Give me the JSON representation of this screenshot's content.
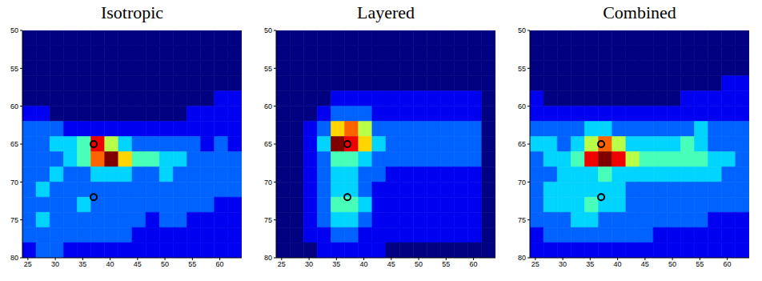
{
  "chart_data": [
    {
      "type": "heatmap",
      "title": "Isotropic",
      "x_edges": [
        24,
        26.5,
        29,
        31.5,
        34,
        36.5,
        39,
        41.5,
        44,
        46.5,
        49,
        51.5,
        54,
        56.5,
        59,
        61.5,
        64
      ],
      "y_edges": [
        50,
        52,
        54,
        56,
        58,
        60,
        62,
        64,
        66,
        68,
        70,
        72,
        74,
        76,
        78,
        80
      ],
      "z": [
        [
          0,
          0,
          0,
          0,
          0,
          0,
          0,
          0,
          0,
          0,
          0,
          0,
          0,
          0,
          0,
          0
        ],
        [
          0,
          0,
          0,
          0,
          0,
          0,
          0,
          0,
          0,
          0,
          0,
          0,
          0,
          0,
          0,
          0
        ],
        [
          0,
          0,
          0,
          0,
          0,
          0,
          0,
          0,
          0,
          0,
          0,
          0,
          0,
          0,
          0,
          0
        ],
        [
          0,
          0,
          0,
          0,
          0,
          0,
          0,
          0,
          0,
          0,
          0,
          0,
          0,
          0,
          0,
          0
        ],
        [
          0,
          0,
          0,
          0,
          0,
          0,
          0,
          0,
          0,
          0,
          0,
          0,
          0,
          0,
          1,
          1
        ],
        [
          1,
          1,
          0,
          0,
          0,
          0,
          0,
          0,
          0,
          0,
          0,
          0,
          1,
          1,
          1,
          1
        ],
        [
          2,
          2,
          2,
          1,
          1,
          1,
          1,
          1,
          1,
          1,
          1,
          1,
          1,
          1,
          1,
          1
        ],
        [
          2,
          2,
          3,
          3,
          4,
          8,
          5,
          3,
          2,
          2,
          2,
          2,
          2,
          1,
          2,
          1
        ],
        [
          2,
          2,
          2,
          3,
          4,
          7,
          9,
          6,
          4,
          4,
          3,
          3,
          2,
          2,
          2,
          2
        ],
        [
          2,
          2,
          3,
          2,
          2,
          3,
          3,
          3,
          2,
          2,
          3,
          2,
          2,
          2,
          2,
          2
        ],
        [
          2,
          3,
          2,
          2,
          2,
          2,
          2,
          2,
          2,
          2,
          2,
          2,
          2,
          2,
          2,
          2
        ],
        [
          2,
          2,
          2,
          2,
          3,
          2,
          2,
          2,
          2,
          2,
          2,
          2,
          2,
          2,
          1,
          1
        ],
        [
          2,
          3,
          2,
          2,
          2,
          2,
          2,
          2,
          2,
          1,
          2,
          2,
          1,
          1,
          1,
          1
        ],
        [
          2,
          2,
          2,
          2,
          2,
          2,
          2,
          2,
          1,
          1,
          1,
          1,
          1,
          1,
          1,
          1
        ],
        [
          1,
          2,
          2,
          1,
          1,
          1,
          1,
          1,
          1,
          1,
          1,
          1,
          1,
          1,
          1,
          1
        ]
      ],
      "zlim": [
        0,
        9
      ],
      "xlim": [
        24,
        64
      ],
      "xticks": [
        25,
        30,
        35,
        40,
        45,
        50,
        55,
        60
      ],
      "ylim": [
        50,
        80
      ],
      "yticks": [
        50,
        55,
        60,
        65,
        70,
        75,
        80
      ],
      "points": {
        "x": [
          37,
          37
        ],
        "y": [
          65,
          72
        ],
        "marker": "circle",
        "color": "#000000"
      }
    },
    {
      "type": "heatmap",
      "title": "Layered",
      "x_edges": [
        24,
        26.5,
        29,
        31.5,
        34,
        36.5,
        39,
        41.5,
        44,
        46.5,
        49,
        51.5,
        54,
        56.5,
        59,
        61.5,
        64
      ],
      "y_edges": [
        50,
        52,
        54,
        56,
        58,
        60,
        62,
        64,
        66,
        68,
        70,
        72,
        74,
        76,
        78,
        80
      ],
      "z": [
        [
          0,
          0,
          0,
          0,
          0,
          0,
          0,
          0,
          0,
          0,
          0,
          0,
          0,
          0,
          0,
          0
        ],
        [
          0,
          0,
          0,
          0,
          0,
          0,
          0,
          0,
          0,
          0,
          0,
          0,
          0,
          0,
          0,
          0
        ],
        [
          0,
          0,
          0,
          0,
          0,
          0,
          0,
          0,
          0,
          0,
          0,
          0,
          0,
          0,
          0,
          0
        ],
        [
          0,
          0,
          0,
          0,
          0,
          0,
          0,
          0,
          0,
          0,
          0,
          0,
          0,
          0,
          0,
          0
        ],
        [
          0,
          0,
          0,
          0,
          1,
          1,
          1,
          1,
          1,
          1,
          1,
          1,
          1,
          1,
          1,
          0
        ],
        [
          0,
          0,
          0,
          1,
          2,
          2,
          2,
          1,
          1,
          1,
          1,
          1,
          1,
          1,
          1,
          0
        ],
        [
          0,
          0,
          1,
          2,
          6,
          7,
          5,
          2,
          2,
          2,
          2,
          2,
          2,
          2,
          2,
          0
        ],
        [
          0,
          0,
          1,
          3,
          9,
          8,
          6,
          3,
          2,
          2,
          2,
          2,
          2,
          2,
          2,
          0
        ],
        [
          0,
          0,
          1,
          2,
          4,
          4,
          3,
          2,
          2,
          2,
          2,
          2,
          2,
          2,
          2,
          0
        ],
        [
          0,
          0,
          1,
          2,
          3,
          3,
          2,
          2,
          1,
          1,
          1,
          1,
          1,
          1,
          1,
          0
        ],
        [
          0,
          0,
          1,
          2,
          3,
          3,
          2,
          1,
          1,
          1,
          1,
          1,
          1,
          1,
          1,
          0
        ],
        [
          0,
          0,
          1,
          2,
          4,
          4,
          3,
          1,
          1,
          1,
          1,
          1,
          1,
          1,
          1,
          0
        ],
        [
          0,
          0,
          1,
          2,
          3,
          3,
          2,
          1,
          1,
          1,
          1,
          1,
          1,
          1,
          1,
          0
        ],
        [
          0,
          0,
          1,
          1,
          2,
          2,
          1,
          1,
          1,
          1,
          1,
          1,
          1,
          1,
          1,
          0
        ],
        [
          0,
          0,
          0,
          1,
          1,
          1,
          1,
          1,
          0,
          0,
          0,
          0,
          0,
          0,
          0,
          0
        ]
      ],
      "zlim": [
        0,
        9
      ],
      "xlim": [
        24,
        64
      ],
      "xticks": [
        25,
        30,
        35,
        40,
        45,
        50,
        55,
        60
      ],
      "ylim": [
        50,
        80
      ],
      "yticks": [
        50,
        55,
        60,
        65,
        70,
        75,
        80
      ],
      "points": {
        "x": [
          37,
          37
        ],
        "y": [
          65,
          72
        ],
        "marker": "circle",
        "color": "#000000"
      }
    },
    {
      "type": "heatmap",
      "title": "Combined",
      "x_edges": [
        24,
        26.5,
        29,
        31.5,
        34,
        36.5,
        39,
        41.5,
        44,
        46.5,
        49,
        51.5,
        54,
        56.5,
        59,
        61.5,
        64
      ],
      "y_edges": [
        50,
        52,
        54,
        56,
        58,
        60,
        62,
        64,
        66,
        68,
        70,
        72,
        74,
        76,
        78,
        80
      ],
      "z": [
        [
          0,
          0,
          0,
          0,
          0,
          0,
          0,
          0,
          0,
          0,
          0,
          0,
          0,
          0,
          0,
          0
        ],
        [
          0,
          0,
          0,
          0,
          0,
          0,
          0,
          0,
          0,
          0,
          0,
          0,
          0,
          0,
          0,
          0
        ],
        [
          0,
          0,
          0,
          0,
          0,
          0,
          0,
          0,
          0,
          0,
          0,
          0,
          0,
          0,
          0,
          0
        ],
        [
          0,
          0,
          0,
          0,
          0,
          0,
          0,
          0,
          0,
          0,
          0,
          0,
          0,
          0,
          1,
          1
        ],
        [
          1,
          0,
          0,
          0,
          0,
          0,
          0,
          0,
          0,
          0,
          0,
          1,
          1,
          1,
          1,
          1
        ],
        [
          1,
          1,
          1,
          1,
          1,
          1,
          1,
          1,
          1,
          1,
          1,
          1,
          1,
          1,
          1,
          1
        ],
        [
          2,
          2,
          2,
          2,
          3,
          3,
          2,
          2,
          2,
          2,
          2,
          2,
          3,
          2,
          2,
          2
        ],
        [
          3,
          3,
          2,
          3,
          5,
          7,
          5,
          3,
          3,
          3,
          3,
          4,
          3,
          2,
          2,
          2
        ],
        [
          2,
          3,
          3,
          4,
          8,
          9,
          8,
          5,
          4,
          4,
          4,
          4,
          4,
          3,
          3,
          2
        ],
        [
          2,
          2,
          3,
          3,
          3,
          4,
          3,
          3,
          3,
          3,
          3,
          3,
          3,
          3,
          2,
          2
        ],
        [
          2,
          3,
          3,
          3,
          3,
          3,
          3,
          2,
          2,
          2,
          2,
          2,
          2,
          2,
          2,
          2
        ],
        [
          2,
          3,
          3,
          3,
          4,
          3,
          3,
          2,
          2,
          2,
          2,
          2,
          2,
          2,
          2,
          2
        ],
        [
          2,
          2,
          2,
          3,
          3,
          2,
          2,
          2,
          2,
          2,
          2,
          2,
          2,
          1,
          1,
          1
        ],
        [
          1,
          2,
          2,
          2,
          2,
          2,
          2,
          2,
          2,
          1,
          1,
          1,
          1,
          1,
          1,
          1
        ],
        [
          1,
          1,
          1,
          1,
          1,
          1,
          1,
          1,
          1,
          1,
          1,
          1,
          1,
          1,
          1,
          1
        ]
      ],
      "zlim": [
        0,
        9
      ],
      "xlim": [
        24,
        64
      ],
      "xticks": [
        25,
        30,
        35,
        40,
        45,
        50,
        55,
        60
      ],
      "ylim": [
        50,
        80
      ],
      "yticks": [
        50,
        55,
        60,
        65,
        70,
        75,
        80
      ],
      "points": {
        "x": [
          37,
          37
        ],
        "y": [
          65,
          72
        ],
        "marker": "circle",
        "color": "#000000"
      }
    }
  ]
}
